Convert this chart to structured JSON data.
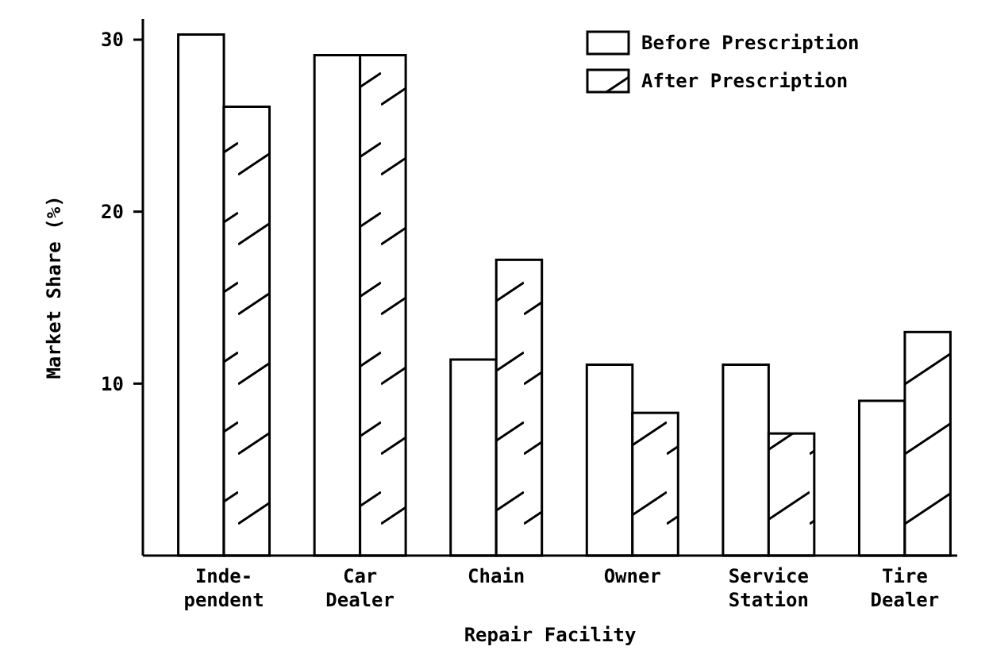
{
  "chart_data": {
    "type": "bar",
    "xlabel": "Repair Facility",
    "ylabel": "Market Share (%)",
    "categories": [
      "Inde-\npendent",
      "Car\nDealer",
      "Chain",
      "Owner",
      "Service\nStation",
      "Tire\nDealer"
    ],
    "series": [
      {
        "name": "Before Prescription",
        "color": "#ffffff",
        "values": [
          30.3,
          29.1,
          11.4,
          11.1,
          11.1,
          9.0
        ]
      },
      {
        "name": "After Prescription",
        "color": "#000000",
        "values": [
          26.1,
          29.1,
          17.2,
          8.3,
          7.1,
          13.0
        ]
      }
    ],
    "ylim": [
      0,
      31.2
    ],
    "yticks": [
      10,
      20,
      30
    ],
    "legend": "top right",
    "grid": false
  }
}
